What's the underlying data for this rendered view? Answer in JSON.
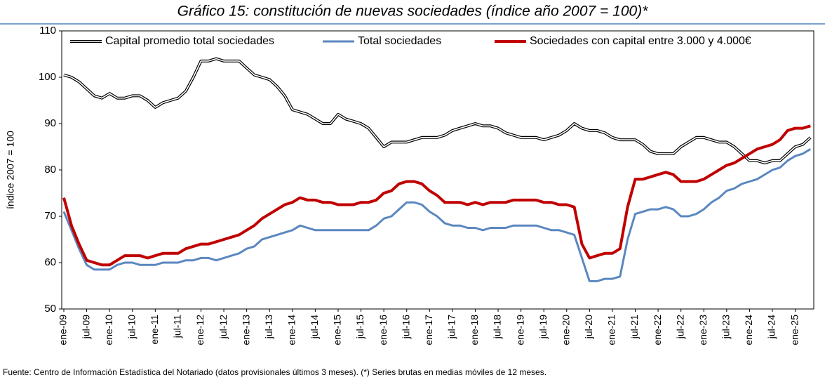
{
  "chart_data": {
    "type": "line",
    "title": "Gráfico 15: constitución de nuevas sociedades (índice año 2007 = 100)*",
    "y_label": "índice 2007 = 100",
    "source": "Fuente: Centro de Información Estadística del Notariado (datos provisionales últimos 3 meses). (*) Series brutas en medias móviles de 12 meses.",
    "categories": [
      "ene-09",
      null,
      null,
      "jul-09",
      null,
      null,
      "ene-10",
      null,
      null,
      "jul-10",
      null,
      null,
      "ene-11",
      null,
      null,
      "jul-11",
      null,
      null,
      "ene-12",
      null,
      null,
      "jul-12",
      null,
      null,
      "ene-13",
      null,
      null,
      "jul-13",
      null,
      null,
      "ene-14",
      null,
      null,
      "jul-14",
      null,
      null,
      "ene-15",
      null,
      null,
      "jul-15",
      null,
      null,
      "ene-16",
      null,
      null,
      "jul-16",
      null,
      null,
      "ene-17",
      null,
      null,
      "jul-17",
      null,
      null,
      "ene-18",
      null,
      null,
      "jul-18",
      null,
      null,
      "ene-19",
      null,
      null,
      "jul-19",
      null,
      null,
      "ene-20",
      null,
      null,
      "jul-20",
      null,
      null,
      "ene-21",
      null,
      null,
      "jul-21",
      null,
      null,
      "ene-22",
      null,
      null,
      "jul-22",
      null,
      null,
      "ene-23",
      null,
      null,
      "jul-23",
      null,
      null,
      "ene-24",
      null,
      null,
      "jul-24",
      null,
      null,
      "ene-25",
      null,
      null
    ],
    "series": [
      {
        "name": "Capital promedio total sociedades",
        "color": "#000000",
        "style": "double",
        "values": [
          100.5,
          100,
          99,
          97.5,
          96,
          95.5,
          96.5,
          95.5,
          95.5,
          96,
          96,
          95,
          93.5,
          94.5,
          95,
          95.5,
          97,
          100,
          103.5,
          103.5,
          104,
          103.5,
          103.5,
          103.5,
          102,
          100.5,
          100,
          99.5,
          98,
          96,
          93,
          92.5,
          92,
          91,
          90,
          90,
          92,
          91,
          90.5,
          90,
          89,
          87,
          85,
          86,
          86,
          86,
          86.5,
          87,
          87,
          87,
          87.5,
          88.5,
          89,
          89.5,
          90,
          89.5,
          89.5,
          89,
          88,
          87.5,
          87,
          87,
          87,
          86.5,
          87,
          87.5,
          88.5,
          90,
          89,
          88.5,
          88.5,
          88,
          87,
          86.5,
          86.5,
          86.5,
          85.5,
          84,
          83.5,
          83.5,
          83.5,
          85,
          86,
          87,
          87,
          86.5,
          86,
          86,
          85,
          83.5,
          82,
          82,
          81.5,
          82,
          82,
          83.5,
          85,
          85.5,
          87
        ]
      },
      {
        "name": "Total sociedades",
        "color": "#5b87c0",
        "style": "solid",
        "values": [
          71,
          67,
          63,
          59.5,
          58.5,
          58.5,
          58.5,
          59.5,
          60,
          60,
          59.5,
          59.5,
          59.5,
          60,
          60,
          60,
          60.5,
          60.5,
          61,
          61,
          60.5,
          61,
          61.5,
          62,
          63,
          63.5,
          65,
          65.5,
          66,
          66.5,
          67,
          68,
          67.5,
          67,
          67,
          67,
          67,
          67,
          67,
          67,
          67,
          68,
          69.5,
          70,
          71.5,
          73,
          73,
          72.5,
          71,
          70,
          68.5,
          68,
          68,
          67.5,
          67.5,
          67,
          67.5,
          67.5,
          67.5,
          68,
          68,
          68,
          68,
          67.5,
          67,
          67,
          66.5,
          66,
          61,
          56,
          56,
          56.5,
          56.5,
          57,
          65,
          70.5,
          71,
          71.5,
          71.5,
          72,
          71.5,
          70,
          70,
          70.5,
          71.5,
          73,
          74,
          75.5,
          76,
          77,
          77.5,
          78,
          79,
          80,
          80.5,
          82,
          83,
          83.5,
          84.5
        ]
      },
      {
        "name": "Sociedades con capital entre 3.000 y 4.000€",
        "color": "#c00000",
        "style": "thick",
        "values": [
          74,
          68,
          64,
          60.5,
          60,
          59.5,
          59.5,
          60.5,
          61.5,
          61.5,
          61.5,
          61,
          61.5,
          62,
          62,
          62,
          63,
          63.5,
          64,
          64,
          64.5,
          65,
          65.5,
          66,
          67,
          68,
          69.5,
          70.5,
          71.5,
          72.5,
          73,
          74,
          73.5,
          73.5,
          73,
          73,
          72.5,
          72.5,
          72.5,
          73,
          73,
          73.5,
          75,
          75.5,
          77,
          77.5,
          77.5,
          77,
          75.5,
          74.5,
          73,
          73,
          73,
          72.5,
          73,
          72.5,
          73,
          73,
          73,
          73.5,
          73.5,
          73.5,
          73.5,
          73,
          73,
          72.5,
          72.5,
          72,
          64,
          61,
          61.5,
          62,
          62,
          63,
          72,
          78,
          78,
          78.5,
          79,
          79.5,
          79,
          77.5,
          77.5,
          77.5,
          78,
          79,
          80,
          81,
          81.5,
          82.5,
          83.5,
          84.5,
          85,
          85.5,
          86.5,
          88.5,
          89,
          89,
          89.5
        ]
      }
    ],
    "ylim": [
      50,
      110
    ],
    "yticks": [
      50,
      60,
      70,
      80,
      90,
      100,
      110
    ],
    "grid": false,
    "legend": "top"
  }
}
